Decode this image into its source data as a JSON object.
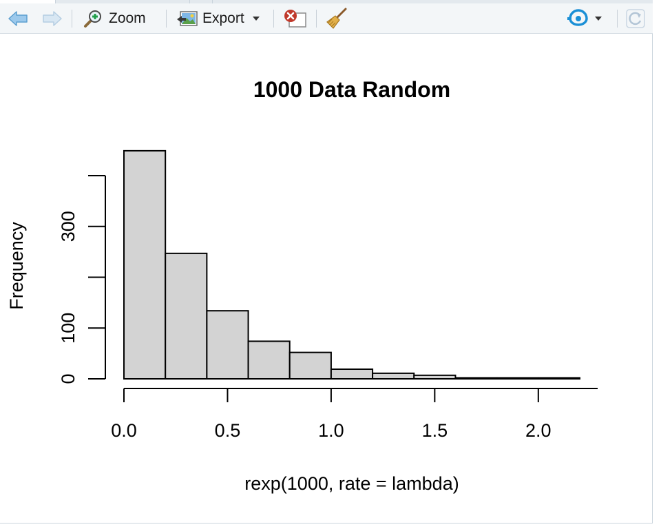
{
  "toolbar": {
    "back_icon": "arrow-left-icon",
    "forward_icon": "arrow-right-icon",
    "zoom_label": "Zoom",
    "export_label": "Export",
    "remove_icon": "remove-plot-icon",
    "clear_icon": "broom-icon",
    "publish_icon": "publish-icon",
    "refresh_icon": "refresh-icon",
    "colors": {
      "background": "#f3f6f8",
      "accent": "#1a8fd6",
      "remove": "#c0392b"
    }
  },
  "chart_data": {
    "type": "bar",
    "title": "1000 Data Random",
    "xlabel": "rexp(1000, rate = lambda)",
    "ylabel": "Frequency",
    "bin_edges": [
      0.0,
      0.2,
      0.4,
      0.6,
      0.8,
      1.0,
      1.2,
      1.4,
      1.6,
      1.8,
      2.0,
      2.2
    ],
    "values": [
      449,
      247,
      134,
      74,
      52,
      19,
      11,
      7,
      2,
      2,
      2
    ],
    "xlim": [
      0.0,
      2.2
    ],
    "ylim": [
      0,
      400
    ],
    "x_ticks": [
      0.0,
      0.5,
      1.0,
      1.5,
      2.0
    ],
    "x_tick_labels": [
      "0.0",
      "0.5",
      "1.0",
      "1.5",
      "2.0"
    ],
    "y_ticks": [
      0,
      100,
      200,
      300,
      400
    ],
    "y_tick_labels": [
      "0",
      "100",
      "",
      "300",
      ""
    ],
    "bar_fill": "#d3d3d3",
    "bar_stroke": "#000000",
    "grid": false
  }
}
